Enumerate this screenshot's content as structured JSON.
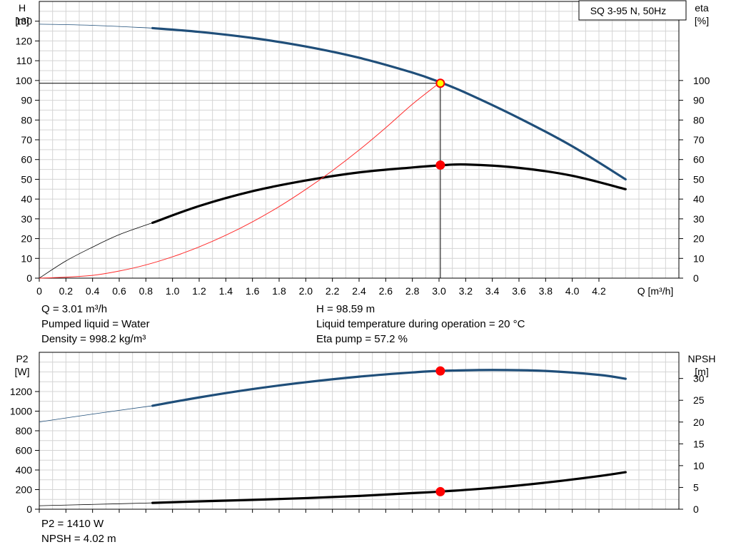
{
  "chart_data": [
    {
      "type": "line",
      "title": "SQ 3-95 N, 50Hz",
      "x_axis": {
        "label": "Q [m³/h]",
        "range": [
          0,
          4.8
        ],
        "ticks": [
          0,
          0.2,
          0.4,
          0.6,
          0.8,
          1.0,
          1.2,
          1.4,
          1.6,
          1.8,
          2.0,
          2.2,
          2.4,
          2.6,
          2.8,
          3.0,
          3.2,
          3.4,
          3.6,
          3.8,
          4.0,
          4.2
        ],
        "tick_labels": [
          "0",
          "0.2",
          "0.4",
          "0.6",
          "0.8",
          "1.0",
          "1.2",
          "1.4",
          "1.6",
          "1.8",
          "2.0",
          "2.2",
          "2.4",
          "2.6",
          "2.8",
          "3.0",
          "3.2",
          "3.4",
          "3.6",
          "3.8",
          "4.0",
          "4.2"
        ]
      },
      "y_left": {
        "label_line1": "H",
        "label_line2": "[m]",
        "range": [
          0,
          140
        ],
        "ticks": [
          0,
          10,
          20,
          30,
          40,
          50,
          60,
          70,
          80,
          90,
          100,
          110,
          120,
          130
        ],
        "tick_labels": [
          "0",
          "10",
          "20",
          "30",
          "40",
          "50",
          "60",
          "70",
          "80",
          "90",
          "100",
          "110",
          "120",
          "130"
        ]
      },
      "y_right": {
        "label_line1": "eta",
        "label_line2": "[%]",
        "range": [
          0,
          140
        ],
        "ticks": [
          0,
          10,
          20,
          30,
          40,
          50,
          60,
          70,
          80,
          90,
          100
        ],
        "tick_labels": [
          "0",
          "10",
          "20",
          "30",
          "40",
          "50",
          "60",
          "70",
          "80",
          "90",
          "100"
        ]
      },
      "grid": true,
      "series": [
        {
          "key": "head",
          "color": "#1f4e79",
          "axis": "left",
          "x": [
            0,
            0.4,
            0.85,
            1.2,
            1.6,
            2.0,
            2.4,
            2.8,
            3.0,
            3.2,
            3.6,
            4.0,
            4.4
          ],
          "y": [
            128.5,
            127.9,
            126.5,
            124.6,
            121.5,
            117.2,
            111.5,
            104.0,
            99.3,
            93.8,
            81.0,
            66.7,
            50.0
          ],
          "bold_from": 0.85
        },
        {
          "key": "efficiency",
          "color": "#000000",
          "axis": "right",
          "x": [
            0,
            0.2,
            0.4,
            0.6,
            0.85,
            1.2,
            1.6,
            2.0,
            2.4,
            2.8,
            3.0,
            3.2,
            3.6,
            4.0,
            4.4
          ],
          "y": [
            0,
            8.7,
            15.7,
            22.0,
            28.0,
            36.5,
            44.0,
            49.4,
            53.5,
            56.0,
            57.0,
            57.5,
            55.8,
            51.8,
            45.0
          ],
          "bold_from": 0.85
        },
        {
          "key": "system-curve",
          "color": "#ff2a2a",
          "axis": "left",
          "x": [
            0,
            0.2,
            0.4,
            0.6,
            0.8,
            1.0,
            1.2,
            1.4,
            1.6,
            1.8,
            2.0,
            2.2,
            2.4,
            2.6,
            2.8,
            3.0
          ],
          "y": [
            0,
            0.5,
            1.4,
            3.6,
            6.7,
            10.8,
            15.8,
            21.7,
            28.5,
            36.2,
            44.9,
            54.4,
            64.8,
            76.1,
            88.0,
            98.59
          ]
        }
      ],
      "markers": [
        {
          "key": "duty-point-head",
          "x": 3.01,
          "y": 98.59,
          "axis": "left",
          "fill": "#ffff00",
          "stroke": "#ff0000"
        },
        {
          "key": "duty-point-eta",
          "x": 3.01,
          "y": 57.2,
          "axis": "right",
          "fill": "#ff0000",
          "stroke": "#ff0000"
        }
      ],
      "crosshair": {
        "x": 3.01,
        "y": 98.59
      }
    },
    {
      "type": "line",
      "x_axis": {
        "range": [
          0,
          4.8
        ],
        "ticks": [
          0,
          0.2,
          0.4,
          0.6,
          0.8,
          1.0,
          1.2,
          1.4,
          1.6,
          1.8,
          2.0,
          2.2,
          2.4,
          2.6,
          2.8,
          3.0,
          3.2,
          3.4,
          3.6,
          3.8,
          4.0,
          4.2
        ]
      },
      "y_left": {
        "label_line1": "P2",
        "label_line2": "[W]",
        "range": [
          0,
          1600
        ],
        "ticks": [
          0,
          200,
          400,
          600,
          800,
          1000,
          1200
        ],
        "tick_labels": [
          "0",
          "200",
          "400",
          "600",
          "800",
          "1000",
          "1200"
        ]
      },
      "y_right": {
        "label_line1": "NPSH",
        "label_line2": "[m]",
        "range": [
          0,
          36
        ],
        "ticks": [
          0,
          5,
          10,
          15,
          20,
          25,
          30
        ],
        "tick_labels": [
          "0",
          "5",
          "10",
          "15",
          "20",
          "25",
          "30"
        ]
      },
      "grid": true,
      "series": [
        {
          "key": "power-p2",
          "color": "#1f4e79",
          "axis": "left",
          "x": [
            0,
            0.4,
            0.85,
            1.2,
            1.6,
            2.0,
            2.4,
            2.8,
            3.0,
            3.4,
            3.8,
            4.2,
            4.4
          ],
          "y": [
            890,
            970,
            1055,
            1140,
            1225,
            1295,
            1352,
            1395,
            1410,
            1420,
            1410,
            1370,
            1330
          ],
          "bold_from": 0.85
        },
        {
          "key": "npsh",
          "color": "#000000",
          "axis": "right",
          "x": [
            0,
            0.4,
            0.85,
            1.2,
            1.6,
            2.0,
            2.4,
            2.8,
            3.0,
            3.4,
            3.8,
            4.2,
            4.4
          ],
          "y": [
            0.8,
            1.1,
            1.45,
            1.8,
            2.15,
            2.55,
            3.05,
            3.7,
            4.02,
            4.9,
            6.1,
            7.6,
            8.5
          ],
          "bold_from": 0.85
        }
      ],
      "markers": [
        {
          "key": "duty-point-p2",
          "x": 3.01,
          "y": 1410,
          "axis": "left",
          "fill": "#ff0000",
          "stroke": "#ff0000"
        },
        {
          "key": "duty-point-npsh",
          "x": 3.01,
          "y": 4.02,
          "axis": "right",
          "fill": "#ff0000",
          "stroke": "#ff0000"
        }
      ]
    }
  ],
  "info": {
    "q": "Q = 3.01 m³/h",
    "liquid": "Pumped liquid = Water",
    "density": "Density = 998.2 kg/m³",
    "h": "H = 98.59 m",
    "temperature": "Liquid temperature during operation = 20 °C",
    "eta": "Eta pump = 57.2 %",
    "p2": "P2 = 1410 W",
    "npsh": "NPSH = 4.02 m"
  }
}
